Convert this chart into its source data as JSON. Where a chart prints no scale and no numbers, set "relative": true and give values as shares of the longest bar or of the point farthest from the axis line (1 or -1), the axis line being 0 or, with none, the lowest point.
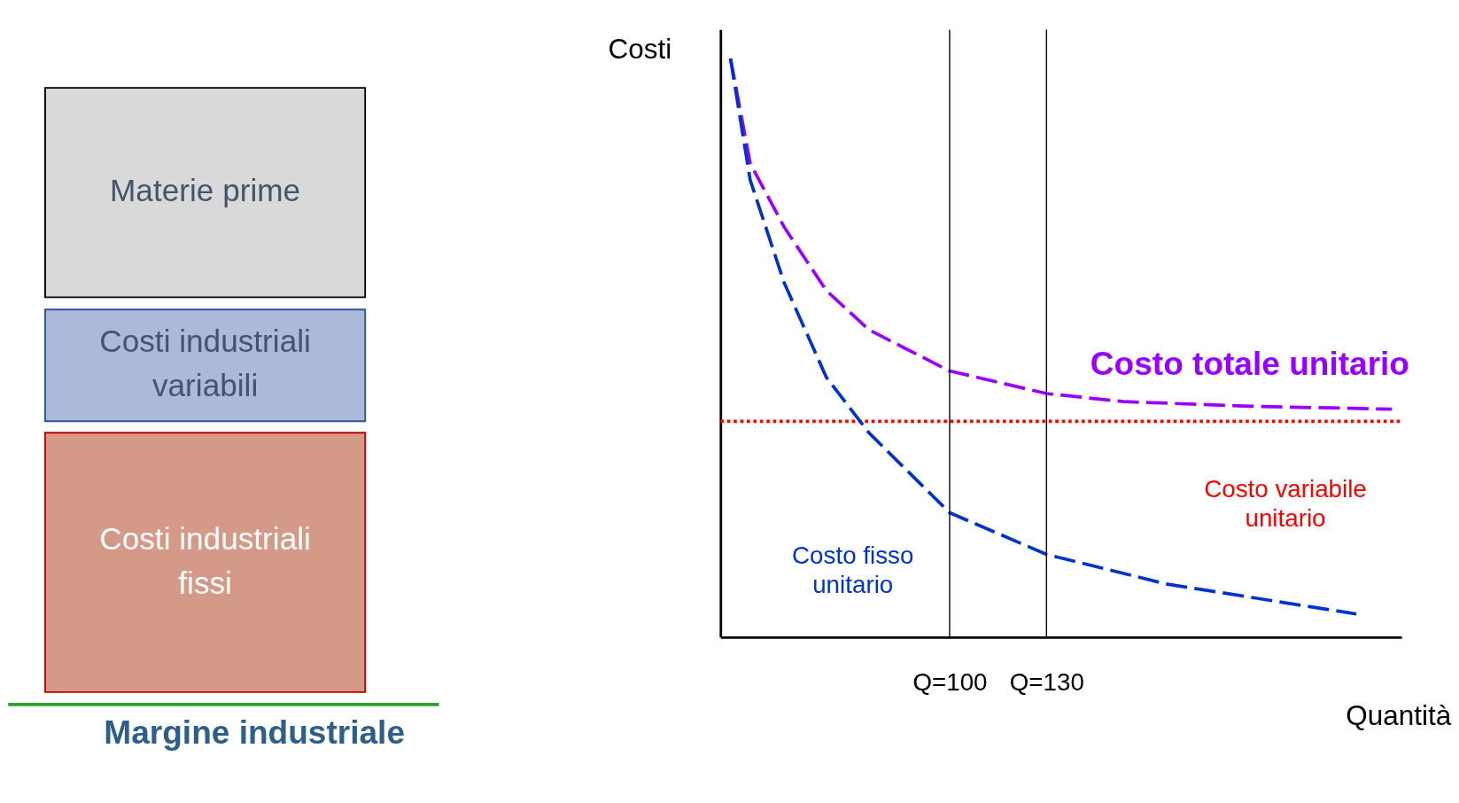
{
  "chart_data": [
    {
      "type": "other",
      "annotations": [
        "Materie prime",
        "Costi industriali variabili",
        "Costi industriali fissi",
        "Margine industriale"
      ],
      "colors": [
        "#d9d9d9",
        "#adb9da",
        "#d59a87",
        "#2ea02c"
      ]
    },
    {
      "type": "line",
      "relative": true,
      "ylabel": "Costi",
      "xlabel": "Quantità",
      "xlim": [
        29,
        240
      ],
      "xticks": [
        {
          "value": 100,
          "label": "Q=100"
        },
        {
          "value": 130,
          "label": "Q=130"
        }
      ],
      "tick_labels": "x",
      "legend": false,
      "marker": "none",
      "series": [
        {
          "name": "Costo totale unitario",
          "color": "#9900ff",
          "line_style": "dashed",
          "x": [
            32.1,
            38.2,
            48.7,
            61.8,
            75,
            100,
            130,
            154,
            193,
            237
          ],
          "values": [
            1.0,
            0.819,
            0.709,
            0.599,
            0.531,
            0.46,
            0.421,
            0.407,
            0.399,
            0.394
          ]
        },
        {
          "name": "Costo variabile unitario",
          "color": "#ff0000",
          "line_style": "dotted",
          "x": [
            29,
            240
          ],
          "values": [
            0.373,
            0.373
          ]
        },
        {
          "name": "Costo fisso unitario",
          "color": "#0033cc",
          "line_style": "dashed",
          "x": [
            32.1,
            38.2,
            48.7,
            61.8,
            75,
            100,
            130,
            167,
            226
          ],
          "values": [
            1.0,
            0.79,
            0.613,
            0.449,
            0.353,
            0.215,
            0.143,
            0.092,
            0.04
          ]
        }
      ],
      "ref_lines": [
        {
          "axis": "x",
          "value": 100,
          "color": "#000000"
        },
        {
          "axis": "x",
          "value": 130,
          "color": "#000000"
        }
      ]
    }
  ]
}
